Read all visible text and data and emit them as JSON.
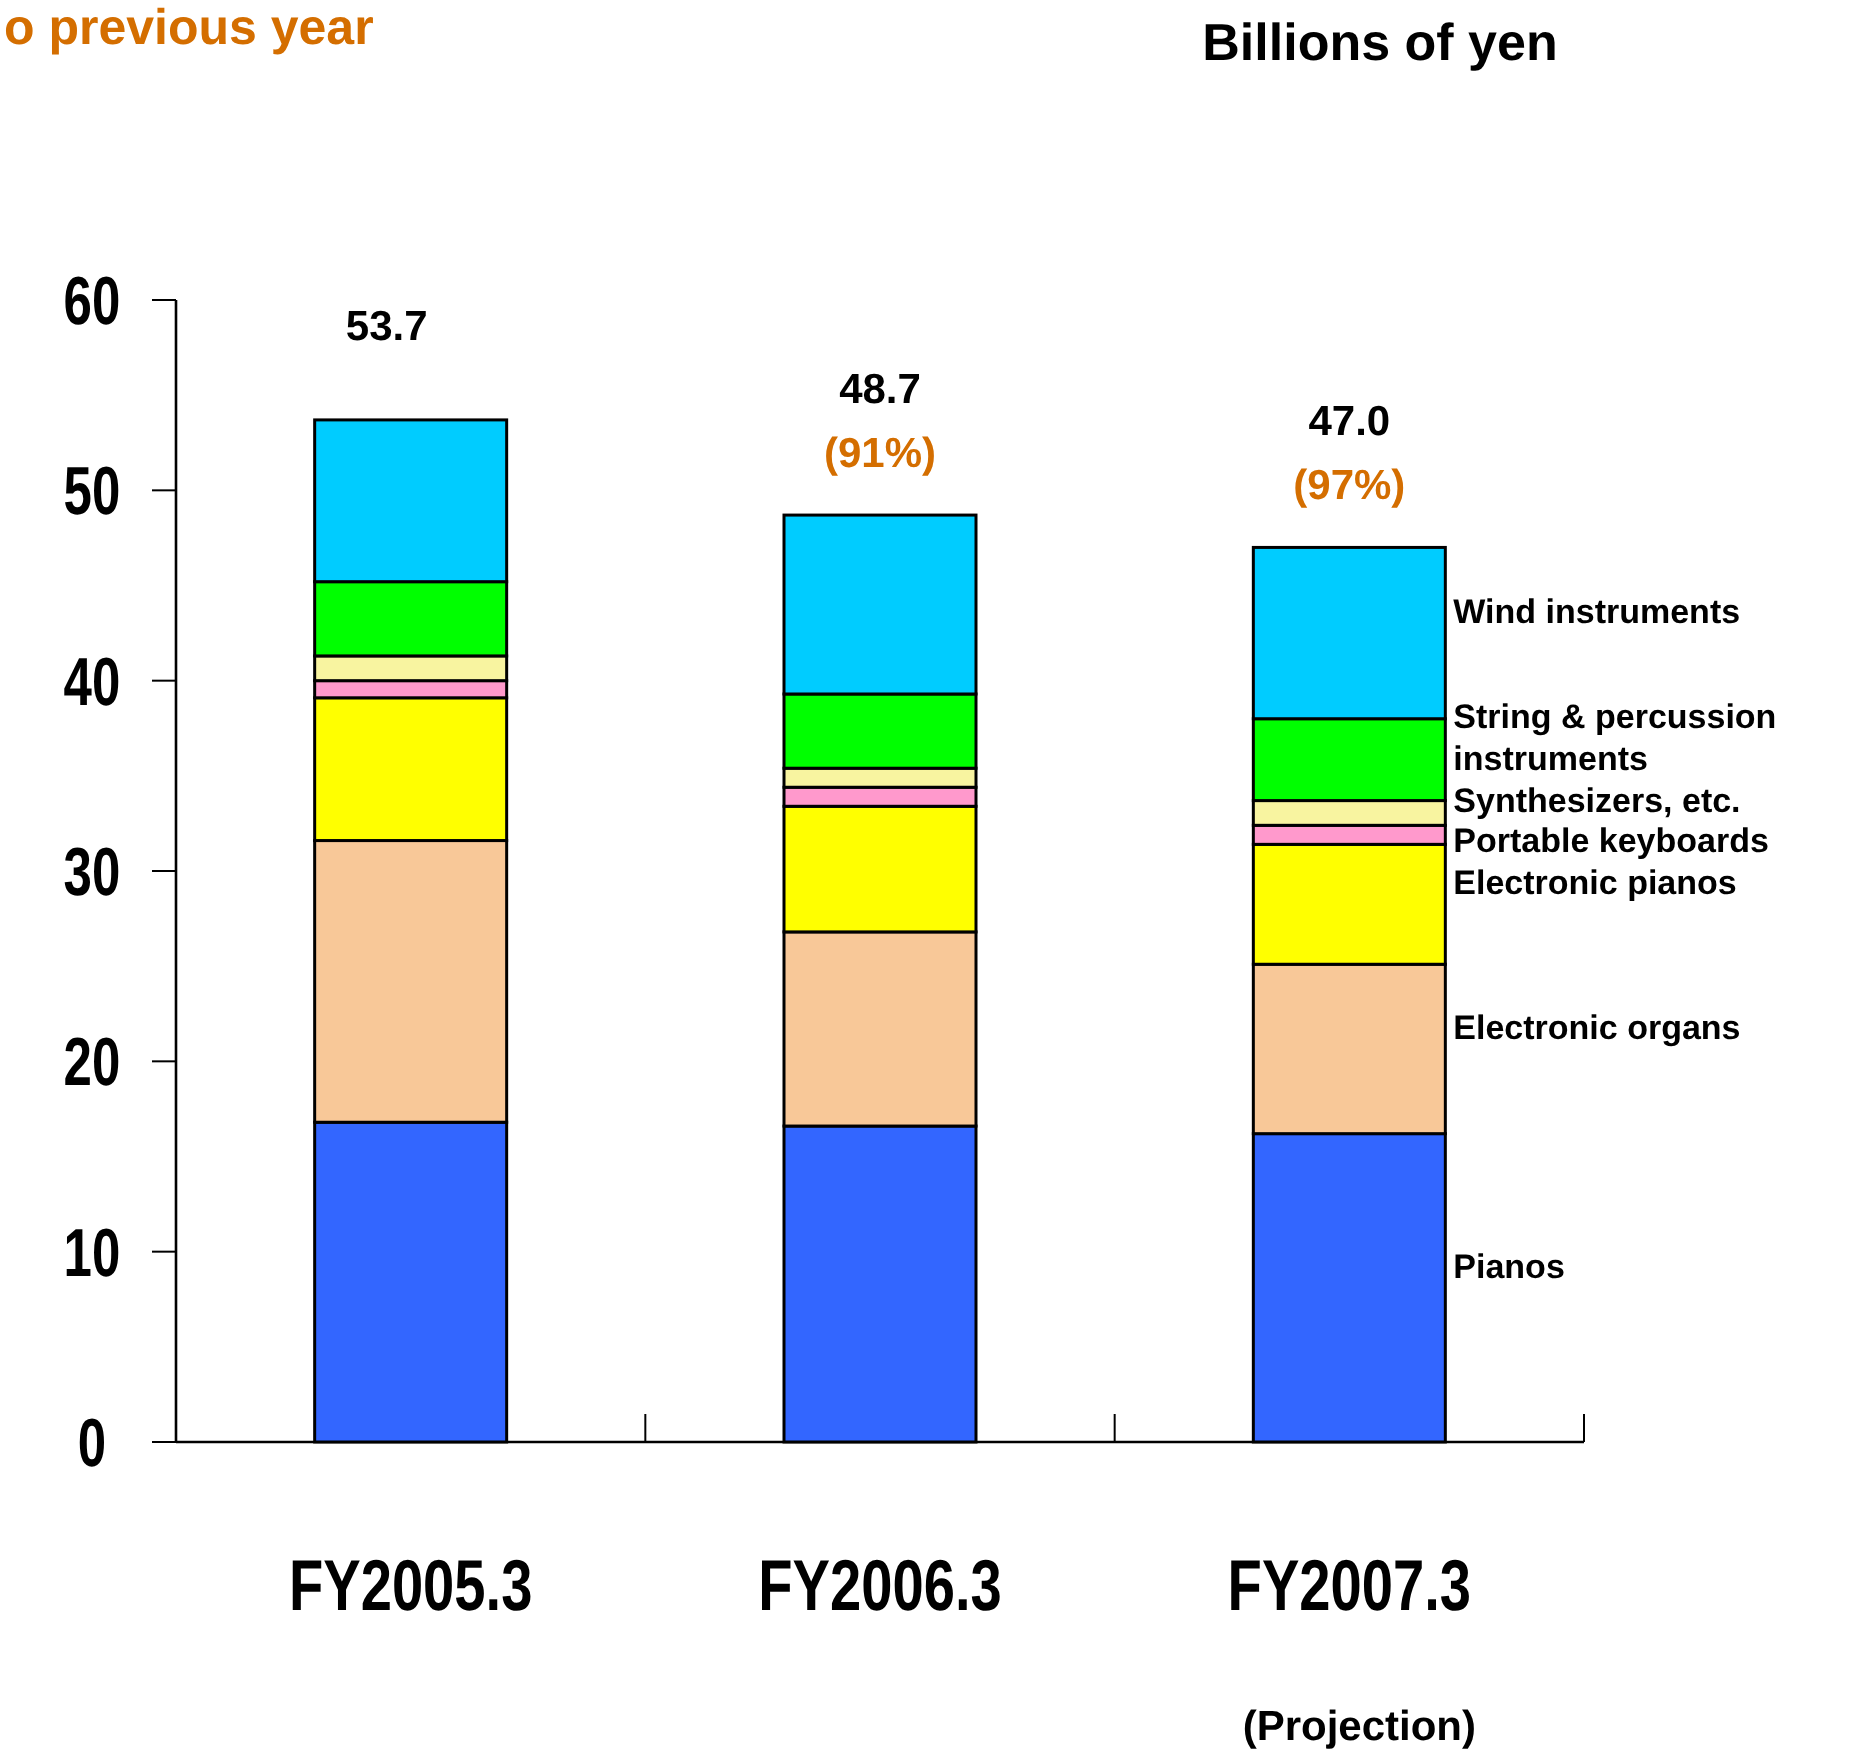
{
  "chart_data": {
    "type": "bar",
    "stacked": true,
    "title": "o previous year",
    "subtitle": "Billions of yen",
    "categories": [
      "FY2005.3",
      "FY2006.3",
      "FY2007.3"
    ],
    "series": [
      {
        "name": "Pianos",
        "color": "#3366ff",
        "values": [
          16.8,
          16.6,
          16.2
        ]
      },
      {
        "name": "Electronic organs",
        "color": "#f8c898",
        "values": [
          14.8,
          10.2,
          8.9
        ]
      },
      {
        "name": "Electronic pianos",
        "color": "#ffff00",
        "values": [
          7.5,
          6.6,
          6.3
        ]
      },
      {
        "name": "Portable keyboards",
        "color": "#ff99cc",
        "values": [
          0.9,
          1.0,
          1.0
        ]
      },
      {
        "name": "Synthesizers, etc.",
        "color": "#f8f4a0",
        "values": [
          1.3,
          1.0,
          1.3
        ]
      },
      {
        "name": "String & percussion instruments",
        "color": "#00ff00",
        "values": [
          3.9,
          3.9,
          4.3
        ]
      },
      {
        "name": "Wind instruments",
        "color": "#00ccff",
        "values": [
          8.5,
          9.4,
          9.0
        ]
      }
    ],
    "totals": [
      "53.7",
      "48.7",
      "47.0"
    ],
    "annotations": [
      {
        "text": "(91%)",
        "x": "FY2006.3",
        "y": 48.7
      },
      {
        "text": "(97%)",
        "x": "FY2007.3",
        "y": 47.0
      },
      "(Projection)"
    ],
    "ylim": [
      0,
      60
    ],
    "yticks": [
      0,
      10,
      20,
      30,
      40,
      50,
      60
    ],
    "grid": false,
    "legend": "right"
  }
}
